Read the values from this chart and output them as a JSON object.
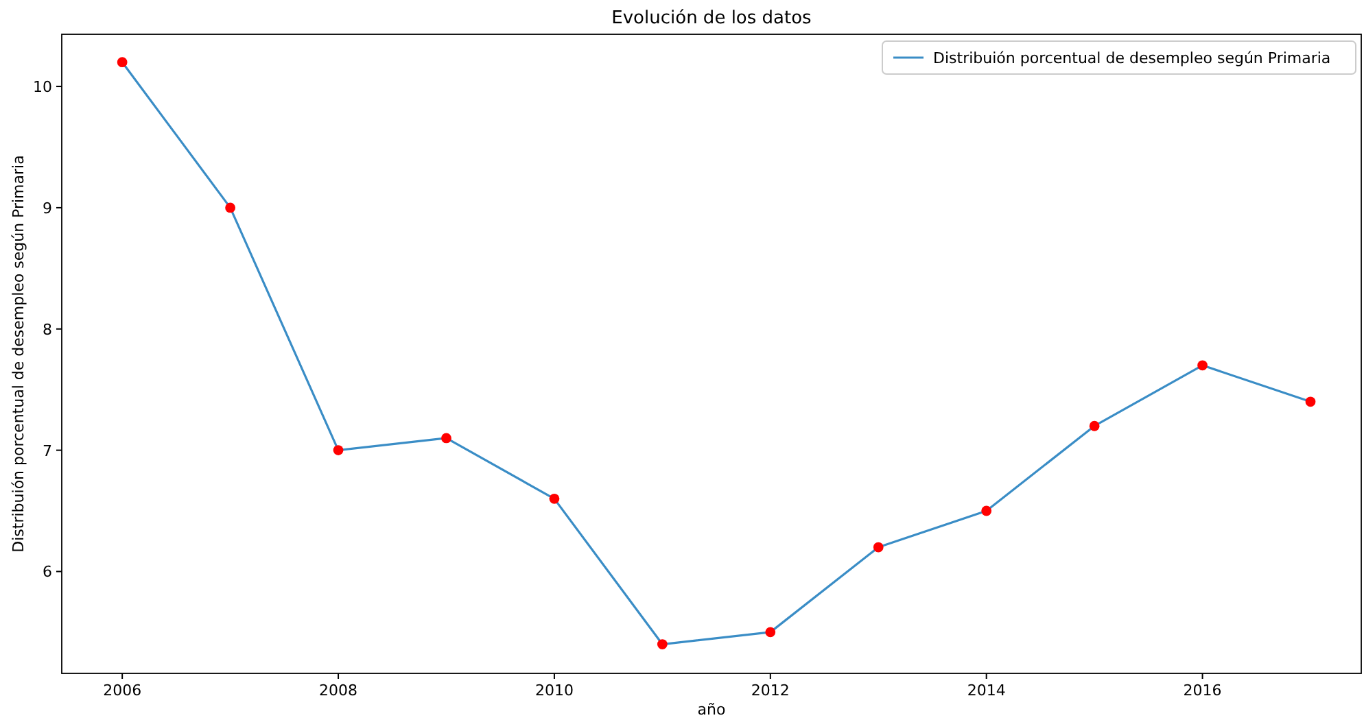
{
  "chart_data": {
    "type": "line",
    "title": "Evolución de los datos",
    "xlabel": "año",
    "ylabel": "Distribuión porcentual de desempleo  según Primaria",
    "x": [
      2006,
      2007,
      2008,
      2009,
      2010,
      2011,
      2012,
      2013,
      2014,
      2015,
      2016,
      2017
    ],
    "series": [
      {
        "name": "Distribuión porcentual de desempleo según Primaria",
        "color": "#3a8dc6",
        "values": [
          10.2,
          9.0,
          7.0,
          7.1,
          6.6,
          5.4,
          5.5,
          6.2,
          6.5,
          7.2,
          7.7,
          7.4
        ]
      },
      {
        "type": "scatter",
        "color": "#ff0000",
        "marker": "circle",
        "values": [
          10.2,
          9.0,
          7.0,
          7.1,
          6.6,
          5.4,
          5.5,
          6.2,
          6.5,
          7.2,
          7.7,
          7.4
        ]
      }
    ],
    "xlim": [
      2005.44,
      2017.47
    ],
    "ylim": [
      5.16,
      10.43
    ],
    "xticks": [
      2006,
      2008,
      2010,
      2012,
      2014,
      2016
    ],
    "yticks": [
      6,
      7,
      8,
      9,
      10
    ],
    "grid": false,
    "legend": "top right"
  }
}
